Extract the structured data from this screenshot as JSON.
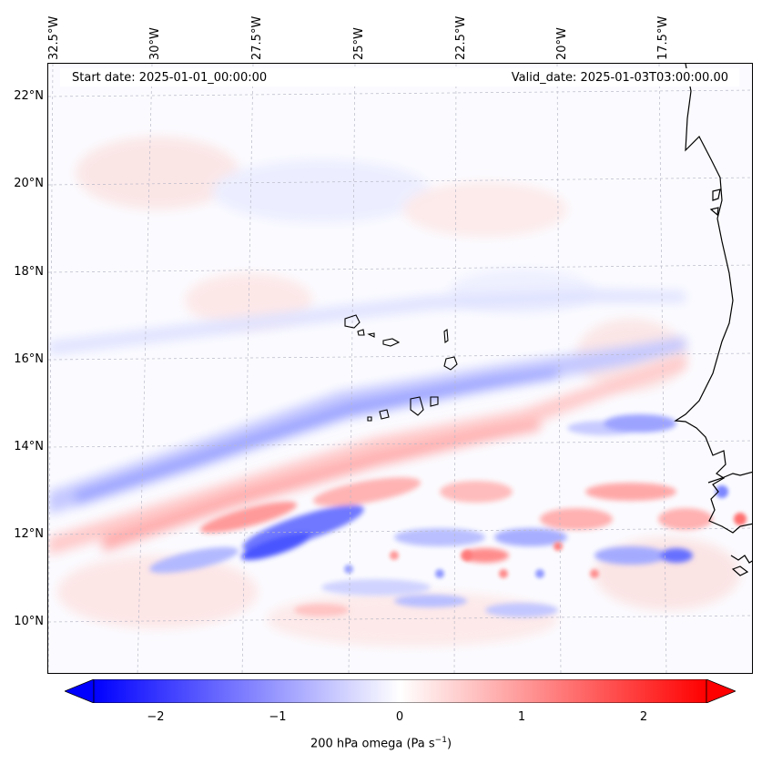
{
  "map": {
    "variable": "200 hPa omega",
    "lon_labels": [
      "32.5°W",
      "30°W",
      "27.5°W",
      "25°W",
      "22.5°W",
      "20°W",
      "17.5°W"
    ],
    "lat_labels": [
      "22°N",
      "20°N",
      "18°N",
      "16°N",
      "14°N",
      "12°N",
      "10°N"
    ],
    "start_date": "Start date: 2025-01-01_00:00:00",
    "valid_date": "Valid_date: 2025-01-03T03:00:00.00",
    "coastline_color": "#000000",
    "gridline_color": "#b8b8c8"
  },
  "colorbar": {
    "cmap": "bwr",
    "range": [
      -2.6,
      2.6
    ],
    "ticks": [
      "−2",
      "−1",
      "0",
      "1",
      "2"
    ],
    "tick_values": [
      -2,
      -1,
      0,
      1,
      2
    ],
    "label_main": "200 hPa omega (Pa s",
    "label_sup": "−1",
    "label_end": ")",
    "extend": "both",
    "low_color": "#0000ff",
    "mid_color": "#ffffff",
    "high_color": "#ff0000"
  }
}
